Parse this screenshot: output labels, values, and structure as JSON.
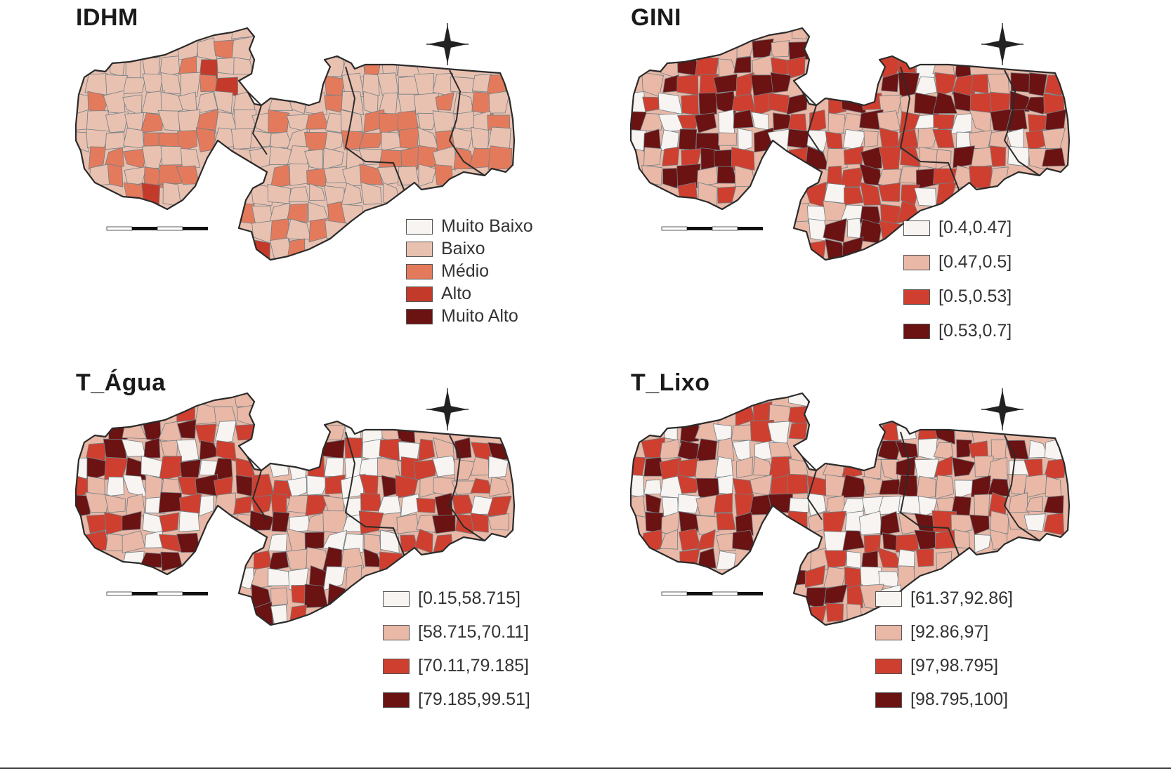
{
  "maps": [
    {
      "id": "idhm",
      "title": "IDHM",
      "legend": [
        {
          "label": "Muito Baixo",
          "color": "#f7f4f1"
        },
        {
          "label": "Baixo",
          "color": "#e9c1b0"
        },
        {
          "label": "Médio",
          "color": "#e47a5c"
        },
        {
          "label": "Alto",
          "color": "#c43a2a"
        },
        {
          "label": "Muito Alto",
          "color": "#6b1212"
        }
      ],
      "class_shares": [
        0.0,
        0.62,
        0.33,
        0.05,
        0.0
      ]
    },
    {
      "id": "gini",
      "title": "GINI",
      "legend": [
        {
          "label": "[0.4,0.47]",
          "color": "#f7f4f1"
        },
        {
          "label": "[0.47,0.5]",
          "color": "#e9b8a6"
        },
        {
          "label": "[0.5,0.53]",
          "color": "#cf3f2f"
        },
        {
          "label": "[0.53,0.7]",
          "color": "#6b1212"
        }
      ],
      "class_shares": [
        0.16,
        0.2,
        0.34,
        0.3
      ]
    },
    {
      "id": "t_agua",
      "title": "T_Água",
      "legend": [
        {
          "label": "[0.15,58.715]",
          "color": "#f7f4f1"
        },
        {
          "label": "[58.715,70.11]",
          "color": "#e9b8a6"
        },
        {
          "label": "[70.11,79.185]",
          "color": "#cf3f2f"
        },
        {
          "label": "[79.185,99.51]",
          "color": "#6b1212"
        }
      ],
      "class_shares": [
        0.22,
        0.26,
        0.3,
        0.22
      ]
    },
    {
      "id": "t_lixo",
      "title": "T_Lixo",
      "legend": [
        {
          "label": "[61.37,92.86]",
          "color": "#f7f4f1"
        },
        {
          "label": "[92.86,97]",
          "color": "#e9b8a6"
        },
        {
          "label": "[97,98.795]",
          "color": "#cf3f2f"
        },
        {
          "label": "[98.795,100]",
          "color": "#6b1212"
        }
      ],
      "class_shares": [
        0.2,
        0.28,
        0.3,
        0.22
      ]
    }
  ]
}
